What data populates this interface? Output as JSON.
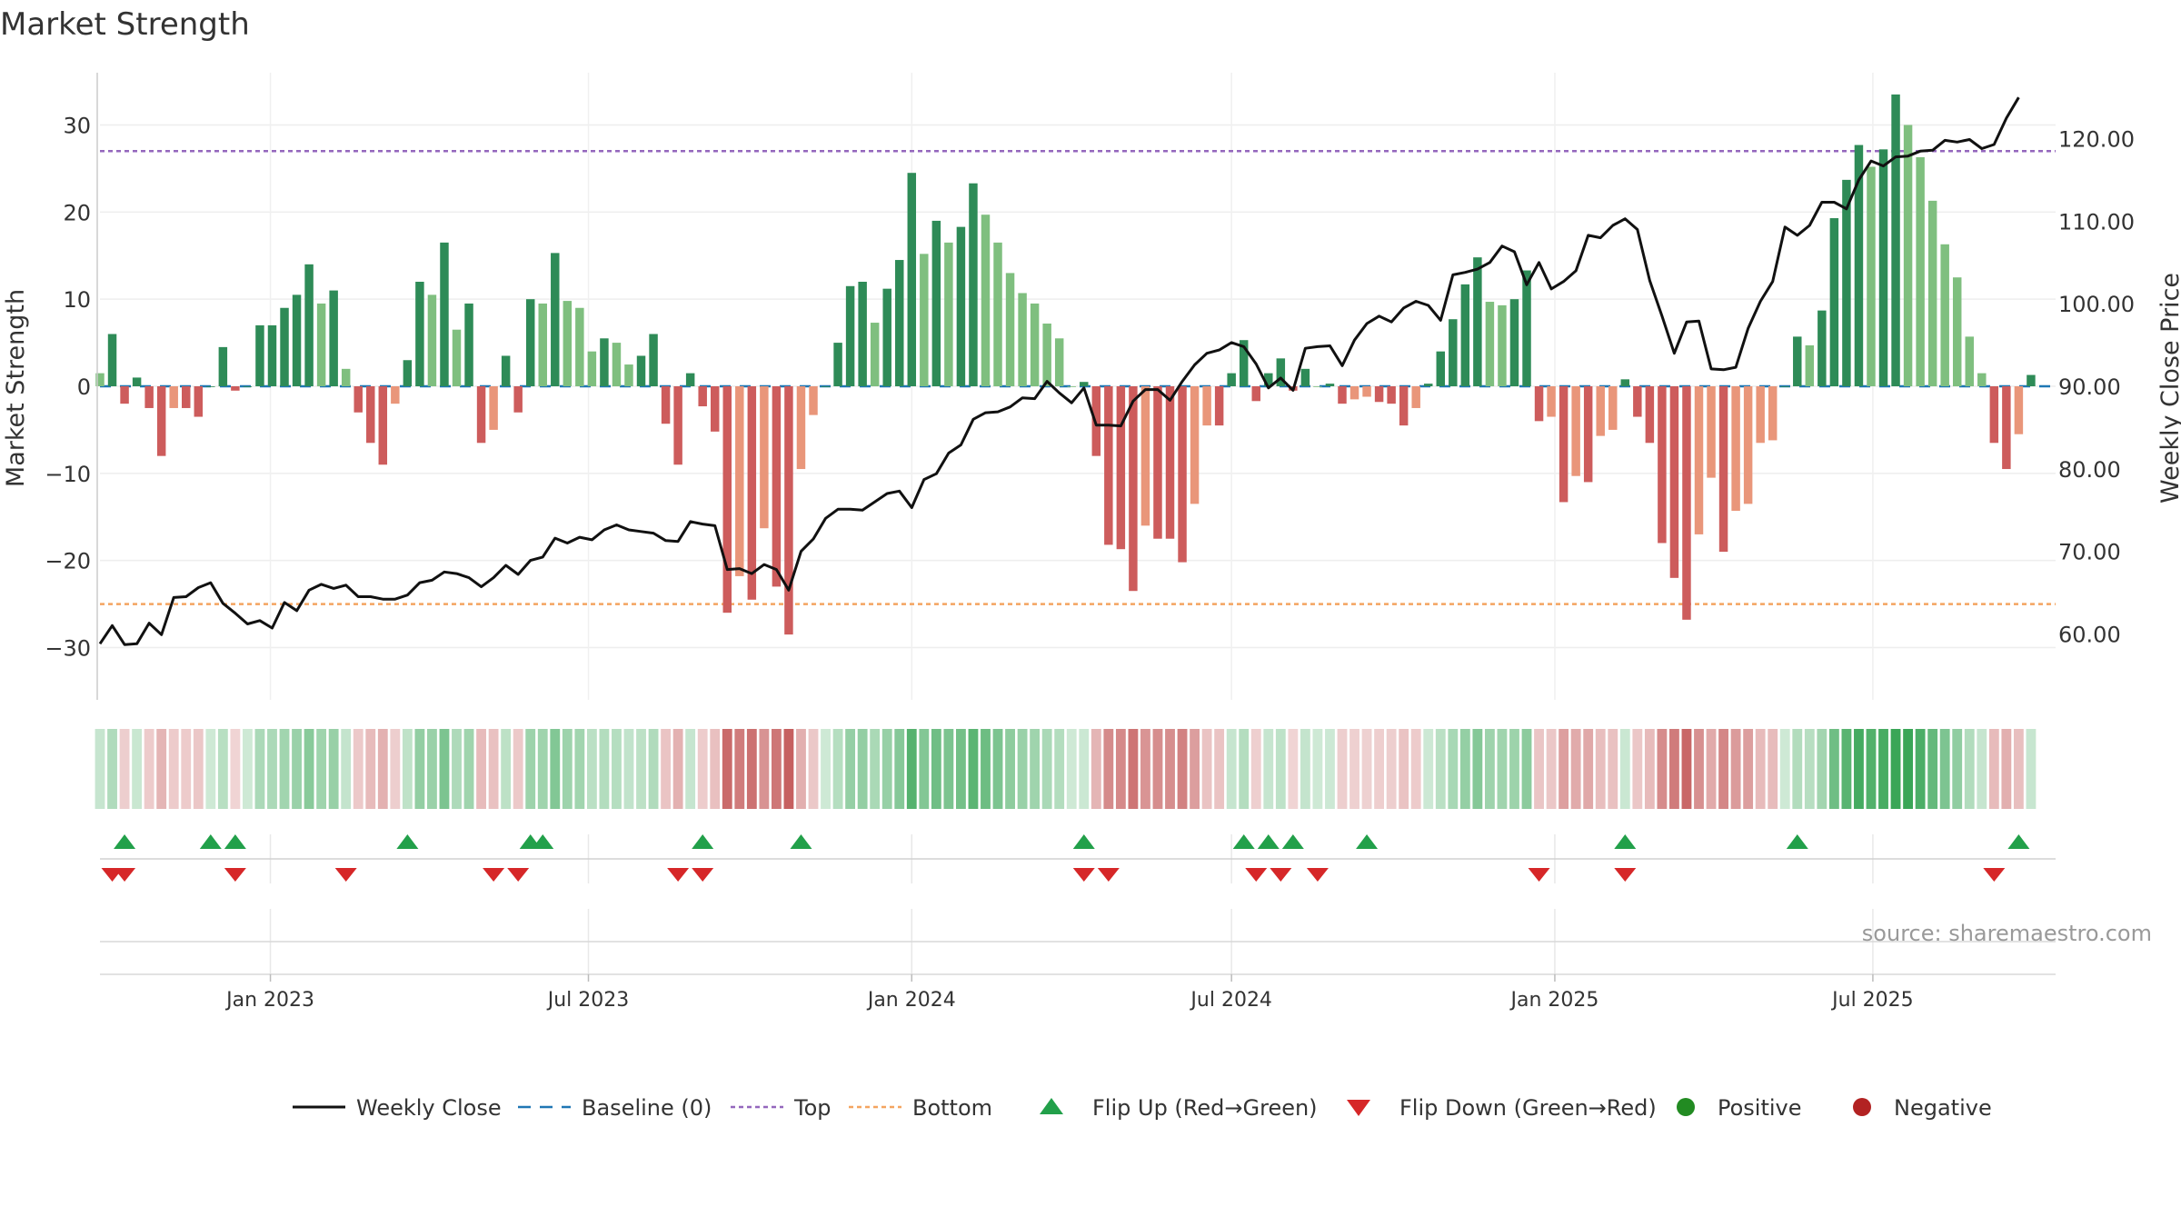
{
  "title": "Market Strength",
  "source": "source: sharemaestro.com",
  "chart_data": {
    "type": "bar",
    "title": "Market Strength",
    "ylabel_left": "Market Strength",
    "ylabel_right": "Weekly Close Price",
    "ylim_left": [
      -36,
      36
    ],
    "ylim_right": [
      52,
      128
    ],
    "yticks_left": [
      30,
      20,
      10,
      0,
      -10,
      -20,
      -30
    ],
    "yticks_left_labels": [
      "30",
      "20",
      "10",
      "0",
      "−10",
      "−20",
      "−30"
    ],
    "yticks_right": [
      120,
      110,
      100,
      90,
      80,
      70,
      60
    ],
    "yticks_right_labels": [
      "120.00",
      "110.00",
      "100.00",
      "90.00",
      "80.00",
      "70.00",
      "60.00"
    ],
    "x_start": "2022-09-26",
    "x_end": "2025-10-13",
    "x_ticks": [
      {
        "date": "2023-01-01",
        "label": "Jan 2023"
      },
      {
        "date": "2023-07-01",
        "label": "Jul 2023"
      },
      {
        "date": "2024-01-01",
        "label": "Jan 2024"
      },
      {
        "date": "2024-07-01",
        "label": "Jul 2024"
      },
      {
        "date": "2025-01-01",
        "label": "Jan 2025"
      },
      {
        "date": "2025-07-01",
        "label": "Jul 2025"
      }
    ],
    "reference_lines": {
      "baseline": 0,
      "top": 27,
      "bottom": -25
    },
    "strength": [
      1.5,
      6,
      -2,
      1,
      -2.5,
      -8,
      -2.5,
      -2.5,
      -3.5,
      0,
      4.5,
      -0.5,
      0,
      7,
      7,
      9,
      10.5,
      14,
      9.5,
      11,
      2,
      -3,
      -6.5,
      -9,
      -2,
      3,
      12,
      10.5,
      16.5,
      6.5,
      9.5,
      -6.5,
      -5,
      3.5,
      -3,
      10,
      9.5,
      15.3,
      9.8,
      9,
      4,
      5.5,
      5,
      2.5,
      3.5,
      6,
      -4.3,
      -9,
      1.5,
      -2.3,
      -5.2,
      -26,
      -21.8,
      -24.5,
      -16.3,
      -23,
      -28.5,
      -9.5,
      -3.3,
      0,
      5,
      11.5,
      12,
      7.3,
      11.2,
      14.5,
      24.5,
      15.2,
      19,
      16.5,
      18.3,
      23.3,
      19.7,
      16.5,
      13,
      10.7,
      9.5,
      7.2,
      5.5,
      0,
      0.5,
      -8,
      -18.2,
      -18.7,
      -23.5,
      -16,
      -17.5,
      -17.5,
      -20.2,
      -13.5,
      -4.5,
      -4.5,
      1.5,
      5.3,
      -1.7,
      1.5,
      3.2,
      -0.5,
      2,
      0,
      0.3,
      -2,
      -1.5,
      -1.2,
      -1.8,
      -2,
      -4.5,
      -2.5,
      0.3,
      4,
      7.7,
      11.7,
      14.8,
      9.7,
      9.3,
      10,
      13.3,
      -4,
      -3.5,
      -13.3,
      -10.3,
      -11,
      -5.7,
      -5,
      0.8,
      -3.5,
      -6.5,
      -18,
      -22,
      -26.8,
      -17,
      -10.5,
      -19,
      -14.3,
      -13.5,
      -6.5,
      -6.2,
      0,
      5.7,
      4.7,
      8.7,
      19.3,
      23.7,
      27.7,
      25.2,
      27.2,
      33.5,
      30,
      26.3,
      21.3,
      16.3,
      12.5,
      5.7,
      1.5,
      -6.5,
      -9.5,
      -5.5,
      1.3
    ],
    "weekly_close": [
      {
        "x": "2022-09-26",
        "y": 58.8
      },
      {
        "x": "2022-10-03",
        "y": 61.0
      },
      {
        "x": "2022-10-10",
        "y": 58.7
      },
      {
        "x": "2022-10-17",
        "y": 58.8
      },
      {
        "x": "2022-10-24",
        "y": 61.3
      },
      {
        "x": "2022-10-31",
        "y": 59.9
      },
      {
        "x": "2022-11-07",
        "y": 64.4
      },
      {
        "x": "2022-11-14",
        "y": 64.5
      },
      {
        "x": "2022-11-21",
        "y": 65.6
      },
      {
        "x": "2022-11-28",
        "y": 66.2
      },
      {
        "x": "2022-12-05",
        "y": 63.7
      },
      {
        "x": "2022-12-12",
        "y": 62.5
      },
      {
        "x": "2022-12-19",
        "y": 61.2
      },
      {
        "x": "2022-12-26",
        "y": 61.6
      },
      {
        "x": "2023-01-02",
        "y": 60.7
      },
      {
        "x": "2023-01-09",
        "y": 63.8
      },
      {
        "x": "2023-01-16",
        "y": 62.8
      },
      {
        "x": "2023-01-23",
        "y": 65.3
      },
      {
        "x": "2023-01-30",
        "y": 66.0
      },
      {
        "x": "2023-02-06",
        "y": 65.5
      },
      {
        "x": "2023-02-13",
        "y": 65.9
      },
      {
        "x": "2023-02-20",
        "y": 64.5
      },
      {
        "x": "2023-02-27",
        "y": 64.5
      },
      {
        "x": "2023-03-06",
        "y": 64.2
      },
      {
        "x": "2023-03-13",
        "y": 64.2
      },
      {
        "x": "2023-03-20",
        "y": 64.7
      },
      {
        "x": "2023-03-27",
        "y": 66.2
      },
      {
        "x": "2023-04-03",
        "y": 66.5
      },
      {
        "x": "2023-04-10",
        "y": 67.5
      },
      {
        "x": "2023-04-17",
        "y": 67.3
      },
      {
        "x": "2023-04-24",
        "y": 66.8
      },
      {
        "x": "2023-05-01",
        "y": 65.7
      },
      {
        "x": "2023-05-08",
        "y": 66.8
      },
      {
        "x": "2023-05-15",
        "y": 68.3
      },
      {
        "x": "2023-05-22",
        "y": 67.2
      },
      {
        "x": "2023-05-29",
        "y": 68.9
      },
      {
        "x": "2023-06-05",
        "y": 69.3
      },
      {
        "x": "2023-06-12",
        "y": 71.6
      },
      {
        "x": "2023-06-19",
        "y": 71.0
      },
      {
        "x": "2023-06-26",
        "y": 71.7
      },
      {
        "x": "2023-07-03",
        "y": 71.4
      },
      {
        "x": "2023-07-10",
        "y": 72.6
      },
      {
        "x": "2023-07-17",
        "y": 73.2
      },
      {
        "x": "2023-07-24",
        "y": 72.6
      },
      {
        "x": "2023-07-31",
        "y": 72.4
      },
      {
        "x": "2023-08-07",
        "y": 72.2
      },
      {
        "x": "2023-08-14",
        "y": 71.3
      },
      {
        "x": "2023-08-21",
        "y": 71.2
      },
      {
        "x": "2023-08-28",
        "y": 73.6
      },
      {
        "x": "2023-09-04",
        "y": 73.3
      },
      {
        "x": "2023-09-11",
        "y": 73.1
      },
      {
        "x": "2023-09-18",
        "y": 67.8
      },
      {
        "x": "2023-09-25",
        "y": 67.9
      },
      {
        "x": "2023-10-02",
        "y": 67.3
      },
      {
        "x": "2023-10-09",
        "y": 68.4
      },
      {
        "x": "2023-10-16",
        "y": 67.8
      },
      {
        "x": "2023-10-23",
        "y": 65.3
      },
      {
        "x": "2023-10-30",
        "y": 70.0
      },
      {
        "x": "2023-11-06",
        "y": 71.5
      },
      {
        "x": "2023-11-13",
        "y": 74.0
      },
      {
        "x": "2023-11-20",
        "y": 75.1
      },
      {
        "x": "2023-11-27",
        "y": 75.1
      },
      {
        "x": "2023-12-04",
        "y": 75.0
      },
      {
        "x": "2023-12-11",
        "y": 76.0
      },
      {
        "x": "2023-12-18",
        "y": 77.0
      },
      {
        "x": "2023-12-25",
        "y": 77.3
      },
      {
        "x": "2024-01-01",
        "y": 75.3
      },
      {
        "x": "2024-01-08",
        "y": 78.7
      },
      {
        "x": "2024-01-15",
        "y": 79.4
      },
      {
        "x": "2024-01-22",
        "y": 81.9
      },
      {
        "x": "2024-01-29",
        "y": 82.9
      },
      {
        "x": "2024-02-05",
        "y": 86.0
      },
      {
        "x": "2024-02-12",
        "y": 86.8
      },
      {
        "x": "2024-02-19",
        "y": 86.9
      },
      {
        "x": "2024-02-26",
        "y": 87.5
      },
      {
        "x": "2024-03-04",
        "y": 88.6
      },
      {
        "x": "2024-03-11",
        "y": 88.5
      },
      {
        "x": "2024-03-18",
        "y": 90.6
      },
      {
        "x": "2024-03-25",
        "y": 89.2
      },
      {
        "x": "2024-04-01",
        "y": 88.0
      },
      {
        "x": "2024-04-08",
        "y": 89.8
      },
      {
        "x": "2024-04-15",
        "y": 85.3
      },
      {
        "x": "2024-04-22",
        "y": 85.3
      },
      {
        "x": "2024-04-29",
        "y": 85.2
      },
      {
        "x": "2024-05-06",
        "y": 88.2
      },
      {
        "x": "2024-05-13",
        "y": 89.6
      },
      {
        "x": "2024-05-20",
        "y": 89.6
      },
      {
        "x": "2024-05-27",
        "y": 88.3
      },
      {
        "x": "2024-06-03",
        "y": 90.6
      },
      {
        "x": "2024-06-10",
        "y": 92.6
      },
      {
        "x": "2024-06-17",
        "y": 94.0
      },
      {
        "x": "2024-06-24",
        "y": 94.4
      },
      {
        "x": "2024-07-01",
        "y": 95.3
      },
      {
        "x": "2024-07-08",
        "y": 94.8
      },
      {
        "x": "2024-07-15",
        "y": 92.7
      },
      {
        "x": "2024-07-22",
        "y": 89.8
      },
      {
        "x": "2024-07-29",
        "y": 91.0
      },
      {
        "x": "2024-08-05",
        "y": 89.5
      },
      {
        "x": "2024-08-12",
        "y": 94.6
      },
      {
        "x": "2024-08-19",
        "y": 94.8
      },
      {
        "x": "2024-08-26",
        "y": 94.9
      },
      {
        "x": "2024-09-02",
        "y": 92.5
      },
      {
        "x": "2024-09-09",
        "y": 95.6
      },
      {
        "x": "2024-09-16",
        "y": 97.6
      },
      {
        "x": "2024-09-23",
        "y": 98.5
      },
      {
        "x": "2024-09-30",
        "y": 97.8
      },
      {
        "x": "2024-10-07",
        "y": 99.5
      },
      {
        "x": "2024-10-14",
        "y": 100.3
      },
      {
        "x": "2024-10-21",
        "y": 99.8
      },
      {
        "x": "2024-10-28",
        "y": 98.0
      },
      {
        "x": "2024-11-04",
        "y": 103.5
      },
      {
        "x": "2024-11-11",
        "y": 103.8
      },
      {
        "x": "2024-11-18",
        "y": 104.2
      },
      {
        "x": "2024-11-25",
        "y": 105.0
      },
      {
        "x": "2024-12-02",
        "y": 107.0
      },
      {
        "x": "2024-12-09",
        "y": 106.3
      },
      {
        "x": "2024-12-16",
        "y": 102.3
      },
      {
        "x": "2024-12-23",
        "y": 105.0
      },
      {
        "x": "2024-12-30",
        "y": 101.8
      },
      {
        "x": "2025-01-06",
        "y": 102.7
      },
      {
        "x": "2025-01-13",
        "y": 104.0
      },
      {
        "x": "2025-01-20",
        "y": 108.3
      },
      {
        "x": "2025-01-27",
        "y": 108.0
      },
      {
        "x": "2025-02-03",
        "y": 109.5
      },
      {
        "x": "2025-02-10",
        "y": 110.3
      },
      {
        "x": "2025-02-17",
        "y": 109.0
      },
      {
        "x": "2025-02-24",
        "y": 102.8
      },
      {
        "x": "2025-03-03",
        "y": 98.5
      },
      {
        "x": "2025-03-10",
        "y": 94.0
      },
      {
        "x": "2025-03-17",
        "y": 97.8
      },
      {
        "x": "2025-03-24",
        "y": 97.9
      },
      {
        "x": "2025-03-31",
        "y": 92.1
      },
      {
        "x": "2025-04-07",
        "y": 92.0
      },
      {
        "x": "2025-04-14",
        "y": 92.3
      },
      {
        "x": "2025-04-21",
        "y": 97.0
      },
      {
        "x": "2025-04-28",
        "y": 100.3
      },
      {
        "x": "2025-05-05",
        "y": 102.7
      },
      {
        "x": "2025-05-12",
        "y": 109.3
      },
      {
        "x": "2025-05-19",
        "y": 108.3
      },
      {
        "x": "2025-05-26",
        "y": 109.5
      },
      {
        "x": "2025-06-02",
        "y": 112.3
      },
      {
        "x": "2025-06-09",
        "y": 112.3
      },
      {
        "x": "2025-06-16",
        "y": 111.5
      },
      {
        "x": "2025-06-23",
        "y": 115.0
      },
      {
        "x": "2025-06-30",
        "y": 117.3
      },
      {
        "x": "2025-07-07",
        "y": 116.7
      },
      {
        "x": "2025-07-14",
        "y": 117.8
      },
      {
        "x": "2025-07-21",
        "y": 117.9
      },
      {
        "x": "2025-07-28",
        "y": 118.5
      },
      {
        "x": "2025-08-04",
        "y": 118.6
      },
      {
        "x": "2025-08-11",
        "y": 119.8
      },
      {
        "x": "2025-08-18",
        "y": 119.6
      },
      {
        "x": "2025-08-25",
        "y": 119.9
      },
      {
        "x": "2025-09-01",
        "y": 118.8
      },
      {
        "x": "2025-09-08",
        "y": 119.3
      },
      {
        "x": "2025-09-15",
        "y": 122.5
      },
      {
        "x": "2025-09-22",
        "y": 125.0
      }
    ],
    "flip_up": [
      "2022-10-10",
      "2022-11-28",
      "2022-12-12",
      "2023-03-20",
      "2023-05-29",
      "2023-06-05",
      "2023-09-04",
      "2023-10-30",
      "2024-04-08",
      "2024-07-08",
      "2024-07-22",
      "2024-08-05",
      "2024-09-16",
      "2025-02-10",
      "2025-05-19",
      "2025-09-22"
    ],
    "flip_down": [
      "2022-10-03",
      "2022-10-10",
      "2022-12-12",
      "2023-02-13",
      "2023-05-08",
      "2023-05-22",
      "2023-08-21",
      "2023-09-04",
      "2024-04-08",
      "2024-04-22",
      "2024-07-15",
      "2024-07-29",
      "2024-08-19",
      "2024-12-23",
      "2025-02-10",
      "2025-09-08"
    ],
    "legend": [
      {
        "label": "Weekly Close",
        "symbol": "line-solid",
        "color": "#111111"
      },
      {
        "label": "Baseline (0)",
        "symbol": "line-dashed",
        "color": "#1f77b4"
      },
      {
        "label": "Top",
        "symbol": "line-dotted",
        "color": "#9467bd"
      },
      {
        "label": "Bottom",
        "symbol": "line-dotted",
        "color": "#f4a460"
      },
      {
        "label": "Flip Up (Red→Green)",
        "symbol": "triangle-up",
        "color": "#22a04a"
      },
      {
        "label": "Flip Down (Green→Red)",
        "symbol": "triangle-down",
        "color": "#d62728"
      },
      {
        "label": "Positive",
        "symbol": "circle",
        "color": "#228b22"
      },
      {
        "label": "Negative",
        "symbol": "circle",
        "color": "#b22222"
      }
    ],
    "legend_placement": "bottom-center",
    "grid": true
  },
  "colors": {
    "positive_strong": "#2e8b57",
    "positive_light": "#7fbf7f",
    "negative_strong": "#cd5c5c",
    "negative_light": "#e9967a",
    "baseline": "#1f77b4",
    "top": "#9467bd",
    "bottom": "#f4a460",
    "price_line": "#111111",
    "text": "#333333",
    "grid": "#eeeeee"
  }
}
